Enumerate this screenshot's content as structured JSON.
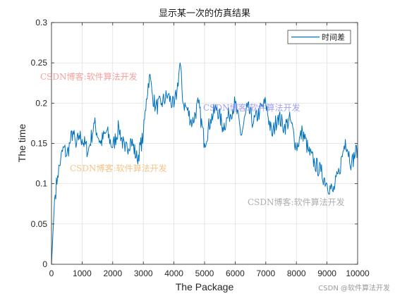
{
  "chart_data": {
    "type": "line",
    "title": "显示某一次的仿真结果",
    "xlabel": "The Package",
    "ylabel": "The time",
    "xlim": [
      0,
      10000
    ],
    "ylim": [
      0,
      0.3
    ],
    "xticks": [
      "0",
      "1000",
      "2000",
      "3000",
      "4000",
      "5000",
      "6000",
      "7000",
      "8000",
      "9000",
      "10000"
    ],
    "yticks": [
      "0",
      "0.05",
      "0.1",
      "0.15",
      "0.2",
      "0.25",
      "0.3"
    ],
    "grid": true,
    "legend_position": "top-right",
    "series": [
      {
        "name": "时间差",
        "color": "#0072BD",
        "x": [
          0,
          100,
          200,
          300,
          400,
          500,
          600,
          700,
          800,
          900,
          1000,
          1200,
          1400,
          1600,
          1800,
          2000,
          2200,
          2400,
          2600,
          2800,
          3000,
          3100,
          3200,
          3300,
          3400,
          3600,
          3800,
          4000,
          4100,
          4200,
          4300,
          4400,
          4600,
          4800,
          5000,
          5200,
          5400,
          5600,
          5800,
          6000,
          6200,
          6400,
          6600,
          6800,
          7000,
          7200,
          7400,
          7600,
          7800,
          8000,
          8200,
          8400,
          8600,
          8800,
          9000,
          9200,
          9400,
          9600,
          9800,
          10000
        ],
        "y": [
          0.0,
          0.08,
          0.11,
          0.13,
          0.145,
          0.135,
          0.15,
          0.165,
          0.145,
          0.16,
          0.155,
          0.14,
          0.175,
          0.15,
          0.165,
          0.145,
          0.17,
          0.14,
          0.155,
          0.13,
          0.16,
          0.205,
          0.235,
          0.21,
          0.195,
          0.2,
          0.21,
          0.195,
          0.215,
          0.25,
          0.2,
          0.195,
          0.175,
          0.2,
          0.15,
          0.18,
          0.195,
          0.17,
          0.185,
          0.2,
          0.16,
          0.195,
          0.175,
          0.19,
          0.2,
          0.16,
          0.185,
          0.17,
          0.18,
          0.145,
          0.165,
          0.14,
          0.125,
          0.115,
          0.1,
          0.09,
          0.115,
          0.155,
          0.125,
          0.145
        ]
      }
    ]
  },
  "watermarks": [
    "CSDN博客:软件算法开发",
    "CSDN博客:软件算法开发",
    "CSDN博客:软件算法开发",
    "CSDN博客:软件算法开发"
  ],
  "footer": "CSDN @软件算法开发"
}
